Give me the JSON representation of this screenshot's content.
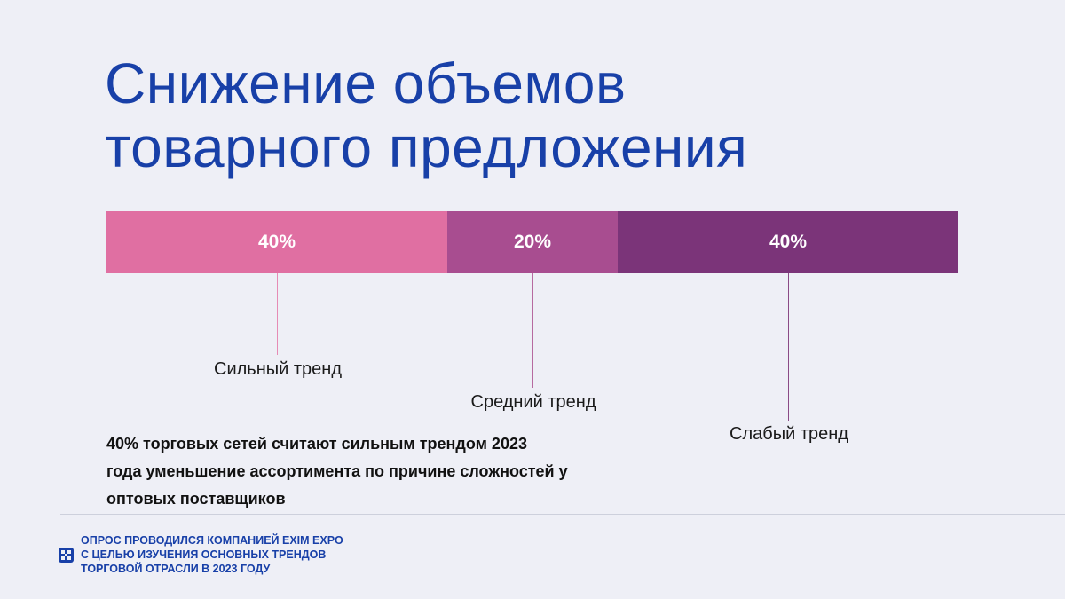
{
  "title": {
    "line1": "Снижение объемов",
    "line2": "товарного предложения"
  },
  "chart_data": {
    "type": "bar",
    "orientation": "horizontal-stacked",
    "categories": [
      "Сильный тренд",
      "Средний тренд",
      "Слабый тренд"
    ],
    "values": [
      40,
      20,
      40
    ],
    "value_labels": [
      "40%",
      "20%",
      "40%"
    ],
    "unit": "%",
    "colors": [
      "#e06fa2",
      "#a84d90",
      "#7b3479"
    ]
  },
  "note": {
    "line1": "40% торговых сетей считают сильным трендом 2023",
    "line2": "года уменьшение ассортимента по причине сложностей у",
    "line3": "оптовых поставщиков"
  },
  "footer": {
    "line1": "ОПРОС ПРОВОДИЛСЯ КОМПАНИЕЙ EXIM EXPO",
    "line2": "С ЦЕЛЬЮ ИЗУЧЕНИЯ ОСНОВНЫХ ТРЕНДОВ",
    "line3": "ТОРГОВОЙ ОТРАСЛИ В 2023 ГОДУ",
    "logo_icon": "exim-expo-logo-icon",
    "logo_color": "#1840a8"
  }
}
